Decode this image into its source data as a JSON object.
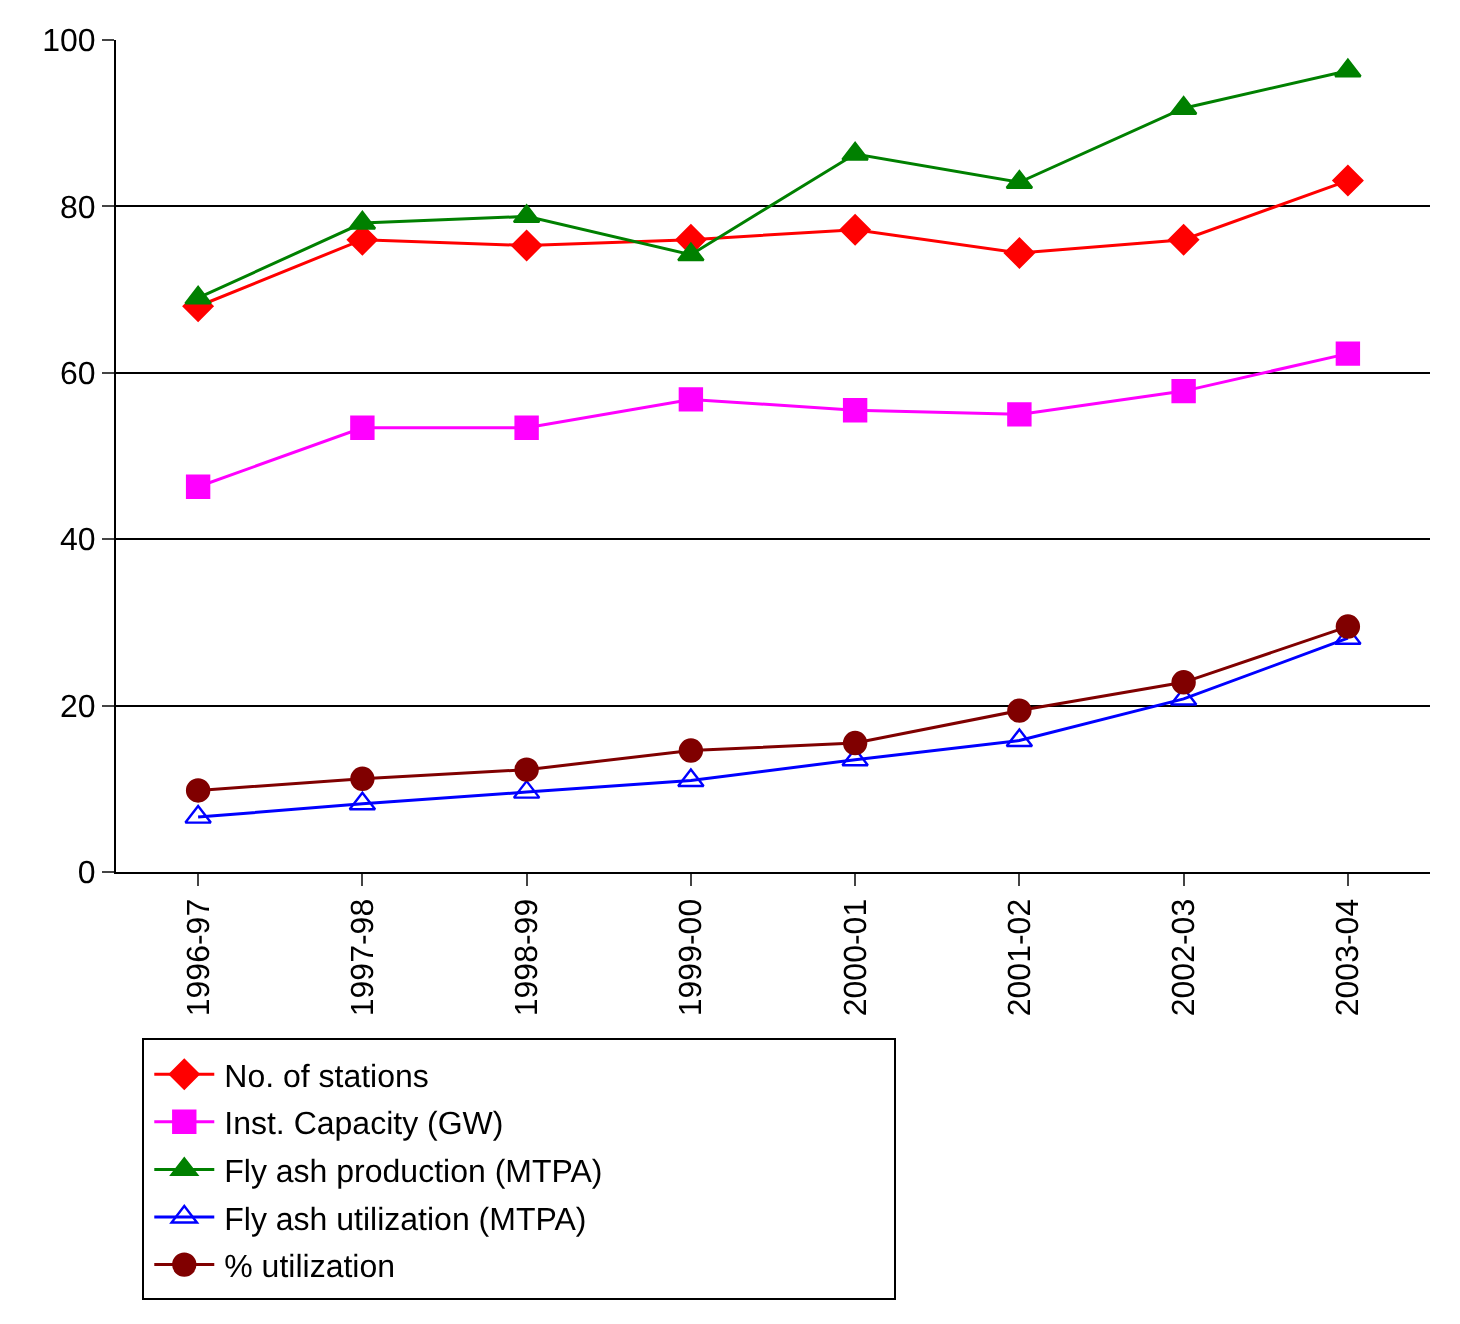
{
  "chart_data": {
    "type": "line",
    "categories": [
      "1996-97",
      "1997-98",
      "1998-99",
      "1999-00",
      "2000-01",
      "2001-02",
      "2002-03",
      "2003-04"
    ],
    "series": [
      {
        "name": "No. of stations",
        "color": "#ff0000",
        "marker": "diamond",
        "values": [
          68,
          76,
          75.3,
          76,
          77.2,
          74.4,
          76,
          83.1
        ]
      },
      {
        "name": "Inst. Capacity (GW)",
        "color": "#ff00ff",
        "marker": "square",
        "values": [
          46.3,
          53.4,
          53.4,
          56.8,
          55.5,
          55,
          57.8,
          62.3
        ]
      },
      {
        "name": "Fly ash production (MTPA)",
        "color": "#008000",
        "marker": "triangle",
        "values": [
          69,
          78,
          78.8,
          74.2,
          86.3,
          82.9,
          91.8,
          96.3
        ]
      },
      {
        "name": "Fly ash utilization (MTPA)",
        "color": "#0000ff",
        "marker": "triangle-open",
        "values": [
          6.6,
          8.2,
          9.6,
          11,
          13.5,
          15.8,
          20.8,
          28.1
        ]
      },
      {
        "name": "% utilization",
        "color": "#800000",
        "marker": "circle",
        "values": [
          9.8,
          11.2,
          12.3,
          14.6,
          15.5,
          19.4,
          22.8,
          29.5
        ]
      }
    ],
    "ylim": [
      0,
      100
    ],
    "yticks": [
      0,
      20,
      40,
      60,
      80,
      100
    ],
    "grid": "y",
    "legend": "bottom",
    "line_style": "solid"
  }
}
